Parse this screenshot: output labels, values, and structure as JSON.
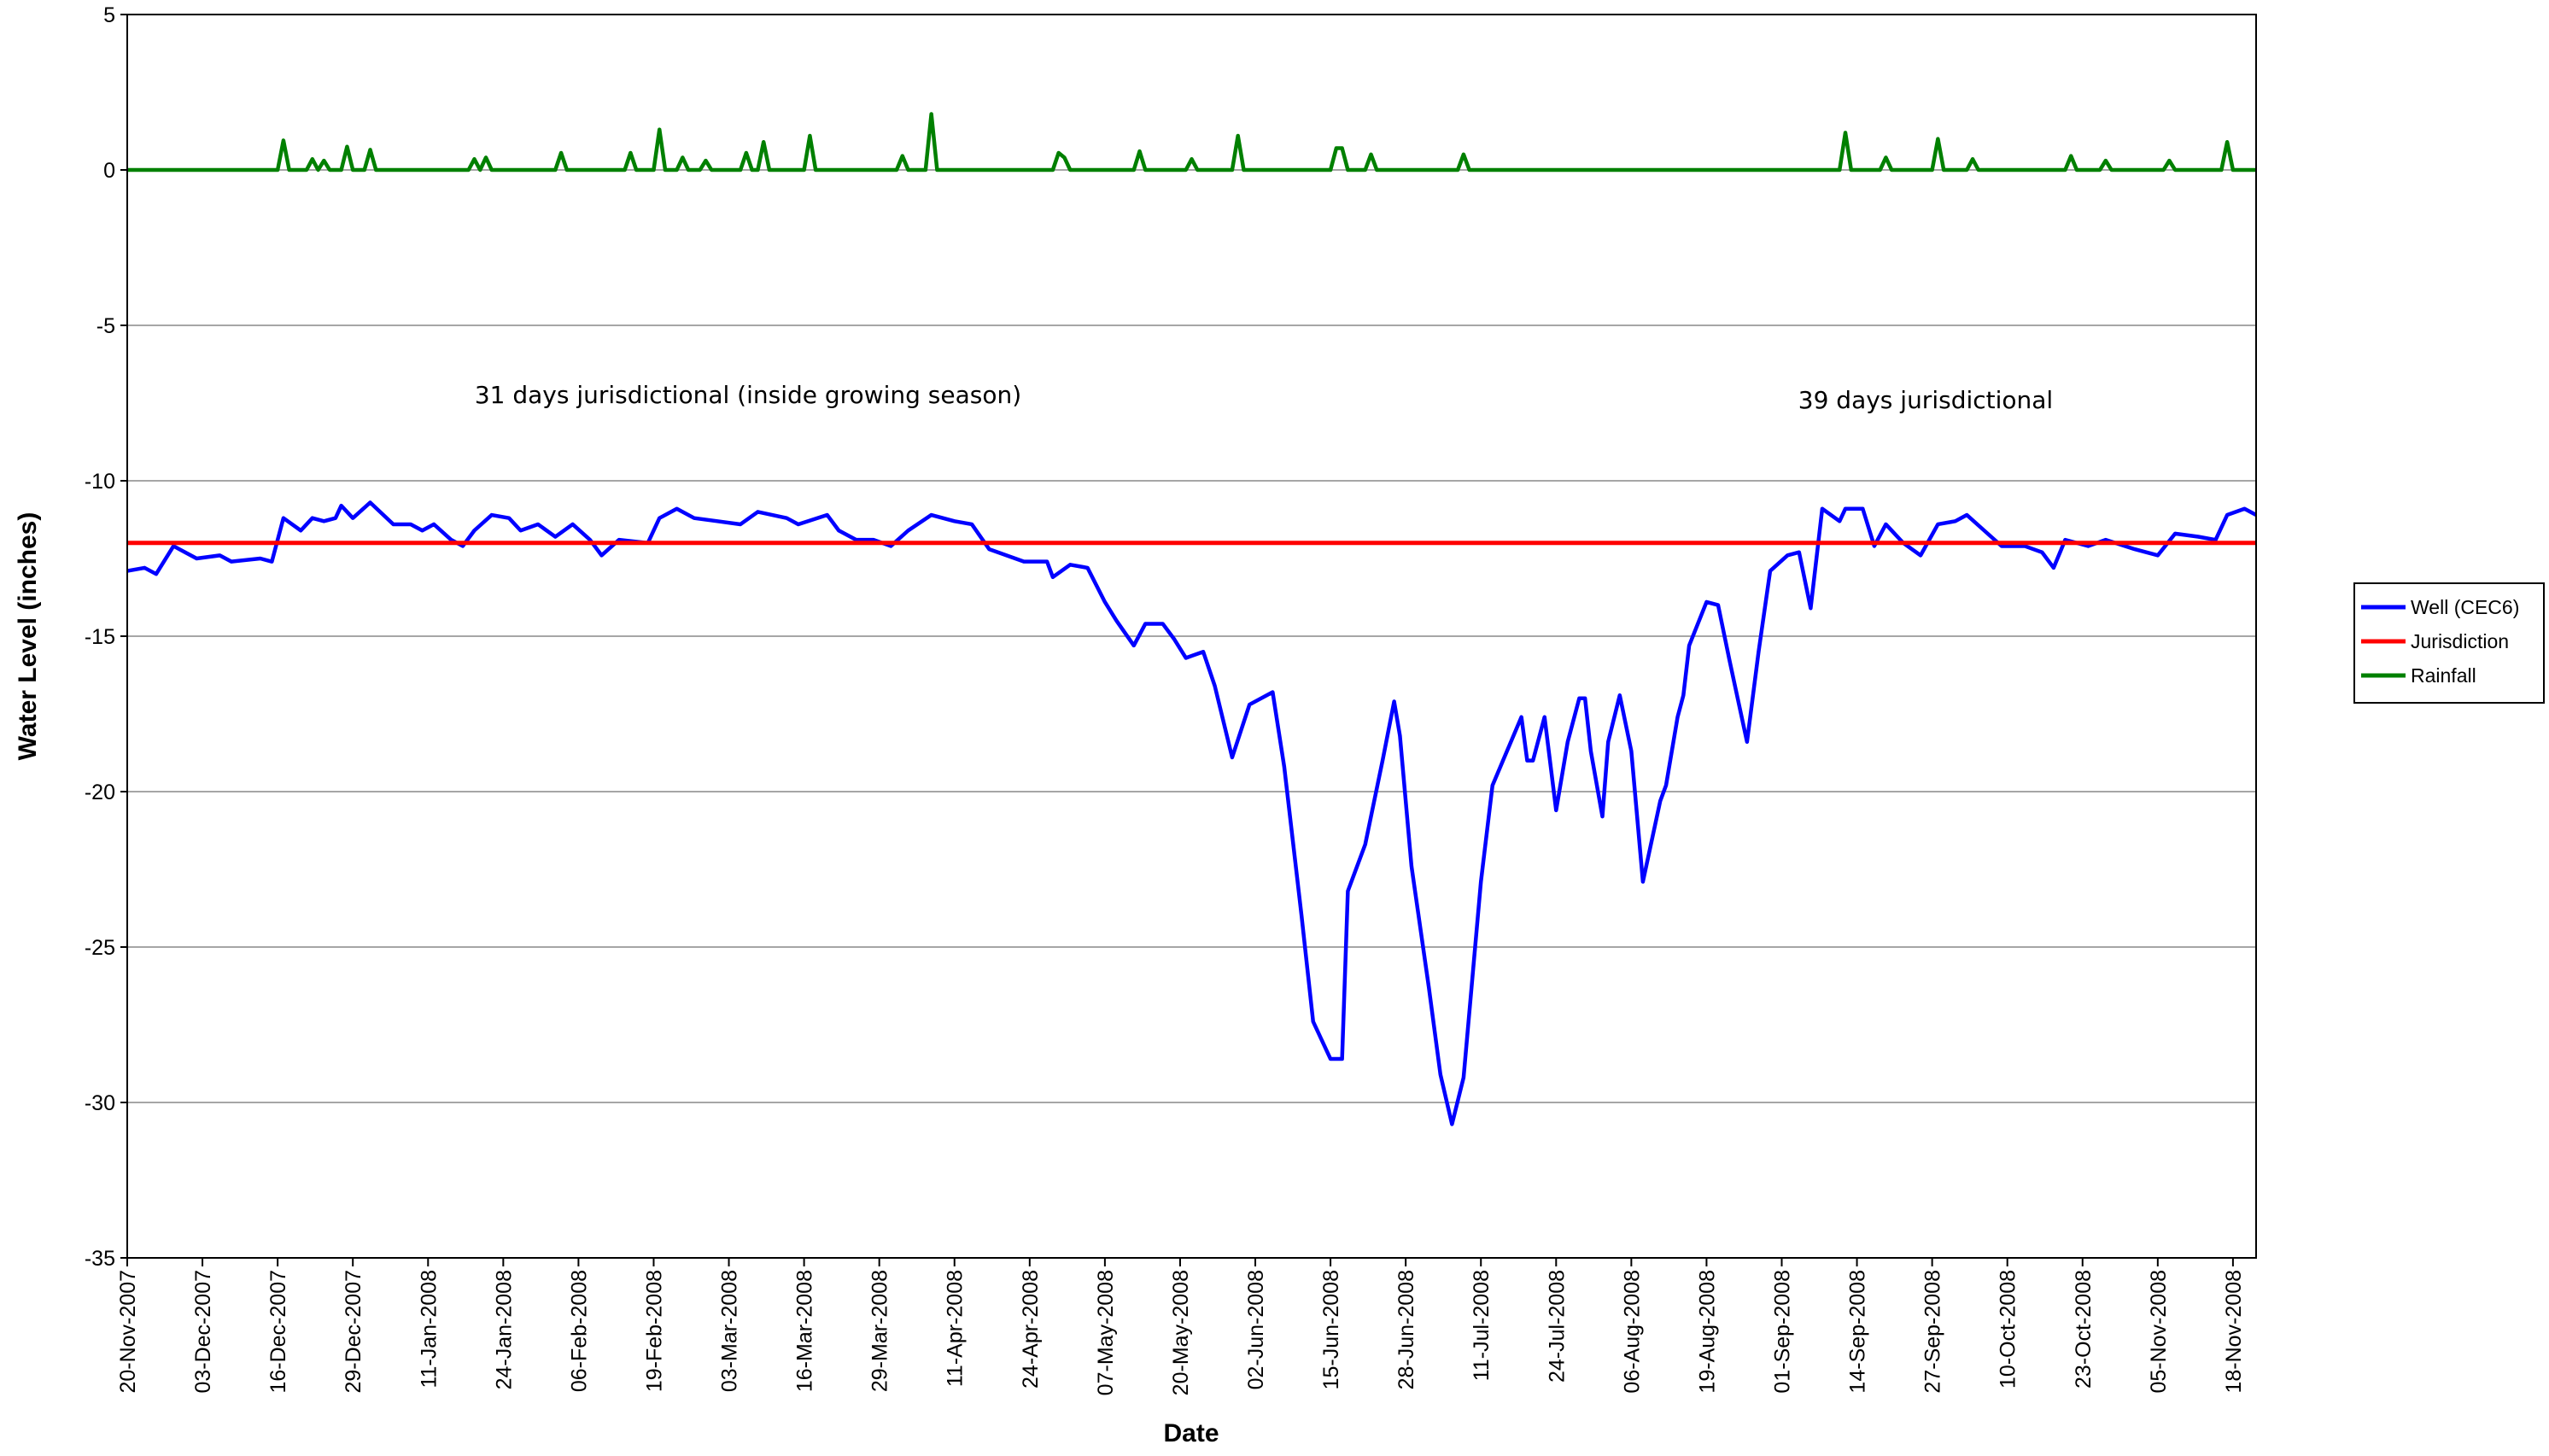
{
  "chart_data": {
    "type": "line",
    "x_label": "Date",
    "y_label": "Water Level (inches)",
    "annotations": [
      "31 days jurisdictional (inside growing season)",
      "39 days jurisdictional"
    ],
    "xlim": [
      "20-Nov-2007",
      "22-Nov-2008"
    ],
    "xticks": [
      "20-Nov-2007",
      "03-Dec-2007",
      "16-Dec-2007",
      "29-Dec-2007",
      "11-Jan-2008",
      "24-Jan-2008",
      "06-Feb-2008",
      "19-Feb-2008",
      "03-Mar-2008",
      "16-Mar-2008",
      "29-Mar-2008",
      "11-Apr-2008",
      "24-Apr-2008",
      "07-May-2008",
      "20-May-2008",
      "02-Jun-2008",
      "15-Jun-2008",
      "28-Jun-2008",
      "11-Jul-2008",
      "24-Jul-2008",
      "06-Aug-2008",
      "19-Aug-2008",
      "01-Sep-2008",
      "14-Sep-2008",
      "27-Sep-2008",
      "10-Oct-2008",
      "23-Oct-2008",
      "05-Nov-2008",
      "18-Nov-2008"
    ],
    "ylim": [
      -35,
      5
    ],
    "yticks": [
      5,
      0,
      -5,
      -10,
      -15,
      -20,
      -25,
      -30,
      -35
    ],
    "grid": true,
    "legend": "right",
    "series": [
      {
        "name": "Well (CEC6)",
        "color": "#0000ff",
        "x": [
          "20-Nov-2007",
          "23-Nov-2007",
          "25-Nov-2007",
          "28-Nov-2007",
          "30-Nov-2007",
          "02-Dec-2007",
          "06-Dec-2007",
          "08-Dec-2007",
          "13-Dec-2007",
          "15-Dec-2007",
          "17-Dec-2007",
          "20-Dec-2007",
          "22-Dec-2007",
          "24-Dec-2007",
          "26-Dec-2007",
          "27-Dec-2007",
          "29-Dec-2007",
          "01-Jan-2008",
          "05-Jan-2008",
          "08-Jan-2008",
          "10-Jan-2008",
          "12-Jan-2008",
          "15-Jan-2008",
          "17-Jan-2008",
          "19-Jan-2008",
          "22-Jan-2008",
          "25-Jan-2008",
          "27-Jan-2008",
          "30-Jan-2008",
          "02-Feb-2008",
          "05-Feb-2008",
          "08-Feb-2008",
          "10-Feb-2008",
          "13-Feb-2008",
          "18-Feb-2008",
          "20-Feb-2008",
          "23-Feb-2008",
          "26-Feb-2008",
          "01-Mar-2008",
          "05-Mar-2008",
          "08-Mar-2008",
          "13-Mar-2008",
          "15-Mar-2008",
          "20-Mar-2008",
          "22-Mar-2008",
          "25-Mar-2008",
          "28-Mar-2008",
          "31-Mar-2008",
          "03-Apr-2008",
          "07-Apr-2008",
          "11-Apr-2008",
          "14-Apr-2008",
          "17-Apr-2008",
          "20-Apr-2008",
          "23-Apr-2008",
          "27-Apr-2008",
          "28-Apr-2008",
          "01-May-2008",
          "04-May-2008",
          "07-May-2008",
          "09-May-2008",
          "12-May-2008",
          "14-May-2008",
          "17-May-2008",
          "19-May-2008",
          "21-May-2008",
          "24-May-2008",
          "26-May-2008",
          "29-May-2008",
          "01-Jun-2008",
          "04-Jun-2008",
          "05-Jun-2008",
          "07-Jun-2008",
          "10-Jun-2008",
          "12-Jun-2008",
          "15-Jun-2008",
          "17-Jun-2008",
          "18-Jun-2008",
          "21-Jun-2008",
          "24-Jun-2008",
          "26-Jun-2008",
          "27-Jun-2008",
          "29-Jun-2008",
          "02-Jul-2008",
          "04-Jul-2008",
          "06-Jul-2008",
          "08-Jul-2008",
          "11-Jul-2008",
          "13-Jul-2008",
          "18-Jul-2008",
          "19-Jul-2008",
          "20-Jul-2008",
          "22-Jul-2008",
          "24-Jul-2008",
          "26-Jul-2008",
          "28-Jul-2008",
          "29-Jul-2008",
          "30-Jul-2008",
          "01-Aug-2008",
          "02-Aug-2008",
          "04-Aug-2008",
          "06-Aug-2008",
          "08-Aug-2008",
          "11-Aug-2008",
          "12-Aug-2008",
          "14-Aug-2008",
          "15-Aug-2008",
          "16-Aug-2008",
          "19-Aug-2008",
          "21-Aug-2008",
          "23-Aug-2008",
          "26-Aug-2008",
          "28-Aug-2008",
          "30-Aug-2008",
          "02-Sep-2008",
          "04-Sep-2008",
          "06-Sep-2008",
          "08-Sep-2008",
          "11-Sep-2008",
          "12-Sep-2008",
          "15-Sep-2008",
          "17-Sep-2008",
          "19-Sep-2008",
          "22-Sep-2008",
          "25-Sep-2008",
          "28-Sep-2008",
          "01-Oct-2008",
          "03-Oct-2008",
          "06-Oct-2008",
          "09-Oct-2008",
          "13-Oct-2008",
          "16-Oct-2008",
          "18-Oct-2008",
          "20-Oct-2008",
          "24-Oct-2008",
          "27-Oct-2008",
          "01-Nov-2008",
          "03-Nov-2008",
          "05-Nov-2008",
          "08-Nov-2008",
          "12-Nov-2008",
          "15-Nov-2008",
          "17-Nov-2008",
          "20-Nov-2008",
          "22-Nov-2008"
        ],
        "values": [
          -12.9,
          -12.8,
          -13.0,
          -12.1,
          -12.3,
          -12.5,
          -12.4,
          -12.6,
          -12.5,
          -12.6,
          -11.2,
          -11.6,
          -11.2,
          -11.3,
          -11.2,
          -10.8,
          -11.2,
          -10.7,
          -11.4,
          -11.4,
          -11.6,
          -11.4,
          -11.9,
          -12.1,
          -11.6,
          -11.1,
          -11.2,
          -11.6,
          -11.4,
          -11.8,
          -11.4,
          -11.9,
          -12.4,
          -11.9,
          -12.0,
          -11.2,
          -10.9,
          -11.2,
          -11.3,
          -11.4,
          -11.0,
          -11.2,
          -11.4,
          -11.1,
          -11.6,
          -11.9,
          -11.9,
          -12.1,
          -11.6,
          -11.1,
          -11.3,
          -11.4,
          -12.2,
          -12.4,
          -12.6,
          -12.6,
          -13.1,
          -12.7,
          -12.8,
          -13.9,
          -14.5,
          -15.3,
          -14.6,
          -14.6,
          -15.1,
          -15.7,
          -15.5,
          -16.6,
          -18.9,
          -17.2,
          -16.9,
          -16.8,
          -19.2,
          -24.0,
          -27.4,
          -28.6,
          -28.6,
          -23.2,
          -21.7,
          -19.0,
          -17.1,
          -18.2,
          -22.4,
          -26.3,
          -29.1,
          -30.7,
          -29.2,
          -22.9,
          -19.8,
          -17.6,
          -19.0,
          -19.0,
          -17.6,
          -20.6,
          -18.4,
          -17.0,
          -17.0,
          -18.7,
          -20.8,
          -18.4,
          -16.9,
          -18.7,
          -22.9,
          -20.3,
          -19.8,
          -17.6,
          -16.9,
          -15.3,
          -13.9,
          -14.0,
          -15.8,
          -18.4,
          -15.5,
          -12.9,
          -12.4,
          -12.3,
          -14.1,
          -10.9,
          -11.3,
          -10.9,
          -10.9,
          -12.1,
          -11.4,
          -12.0,
          -12.4,
          -11.4,
          -11.3,
          -11.1,
          -11.6,
          -12.1,
          -12.1,
          -12.3,
          -12.8,
          -11.9,
          -12.1,
          -11.9,
          -12.2,
          -12.3,
          -12.4,
          -11.7,
          -11.8,
          -11.9,
          -11.1,
          -10.9,
          -11.1
        ]
      },
      {
        "name": "Jurisdiction",
        "color": "#ff0000",
        "x": [
          "20-Nov-2007",
          "22-Nov-2008"
        ],
        "values": [
          -12,
          -12
        ]
      },
      {
        "name": "Rainfall",
        "color": "#008000",
        "x": [
          "20-Nov-2007",
          "16-Dec-2007",
          "17-Dec-2007",
          "18-Dec-2007",
          "21-Dec-2007",
          "22-Dec-2007",
          "23-Dec-2007",
          "24-Dec-2007",
          "25-Dec-2007",
          "27-Dec-2007",
          "28-Dec-2007",
          "29-Dec-2007",
          "31-Dec-2007",
          "01-Jan-2008",
          "02-Jan-2008",
          "18-Jan-2008",
          "19-Jan-2008",
          "20-Jan-2008",
          "21-Jan-2008",
          "22-Jan-2008",
          "02-Feb-2008",
          "03-Feb-2008",
          "04-Feb-2008",
          "14-Feb-2008",
          "15-Feb-2008",
          "16-Feb-2008",
          "19-Feb-2008",
          "20-Feb-2008",
          "21-Feb-2008",
          "23-Feb-2008",
          "24-Feb-2008",
          "25-Feb-2008",
          "27-Feb-2008",
          "28-Feb-2008",
          "29-Feb-2008",
          "05-Mar-2008",
          "06-Mar-2008",
          "07-Mar-2008",
          "08-Mar-2008",
          "09-Mar-2008",
          "10-Mar-2008",
          "16-Mar-2008",
          "17-Mar-2008",
          "18-Mar-2008",
          "01-Apr-2008",
          "02-Apr-2008",
          "03-Apr-2008",
          "06-Apr-2008",
          "07-Apr-2008",
          "08-Apr-2008",
          "28-Apr-2008",
          "29-Apr-2008",
          "30-Apr-2008",
          "01-May-2008",
          "12-May-2008",
          "13-May-2008",
          "14-May-2008",
          "21-May-2008",
          "22-May-2008",
          "23-May-2008",
          "29-May-2008",
          "30-May-2008",
          "31-May-2008",
          "15-Jun-2008",
          "16-Jun-2008",
          "17-Jun-2008",
          "18-Jun-2008",
          "21-Jun-2008",
          "22-Jun-2008",
          "23-Jun-2008",
          "07-Jul-2008",
          "08-Jul-2008",
          "09-Jul-2008",
          "11-Sep-2008",
          "12-Sep-2008",
          "13-Sep-2008",
          "18-Sep-2008",
          "19-Sep-2008",
          "20-Sep-2008",
          "27-Sep-2008",
          "28-Sep-2008",
          "29-Sep-2008",
          "03-Oct-2008",
          "04-Oct-2008",
          "05-Oct-2008",
          "20-Oct-2008",
          "21-Oct-2008",
          "22-Oct-2008",
          "26-Oct-2008",
          "27-Oct-2008",
          "28-Oct-2008",
          "06-Nov-2008",
          "07-Nov-2008",
          "08-Nov-2008",
          "16-Nov-2008",
          "17-Nov-2008",
          "18-Nov-2008",
          "22-Nov-2008"
        ],
        "values": [
          0,
          0,
          0.95,
          0,
          0,
          0.35,
          0,
          0.3,
          0,
          0,
          0.75,
          0,
          0,
          0.65,
          0,
          0,
          0.35,
          0,
          0.4,
          0,
          0,
          0.55,
          0,
          0,
          0.55,
          0,
          0,
          1.3,
          0,
          0,
          0.4,
          0,
          0,
          0.3,
          0,
          0,
          0.55,
          0,
          0,
          0.9,
          0,
          0,
          1.1,
          0,
          0,
          0.45,
          0,
          0,
          1.8,
          0,
          0,
          0.55,
          0.4,
          0,
          0,
          0.6,
          0,
          0,
          0.35,
          0,
          0,
          1.1,
          0,
          0,
          0.7,
          0.7,
          0,
          0,
          0.5,
          0,
          0,
          0.5,
          0,
          0,
          1.2,
          0,
          0,
          0.4,
          0,
          0,
          1.0,
          0,
          0,
          0.35,
          0,
          0,
          0.45,
          0,
          0,
          0.3,
          0,
          0,
          0.3,
          0,
          0,
          0.9,
          0,
          0
        ]
      }
    ]
  }
}
